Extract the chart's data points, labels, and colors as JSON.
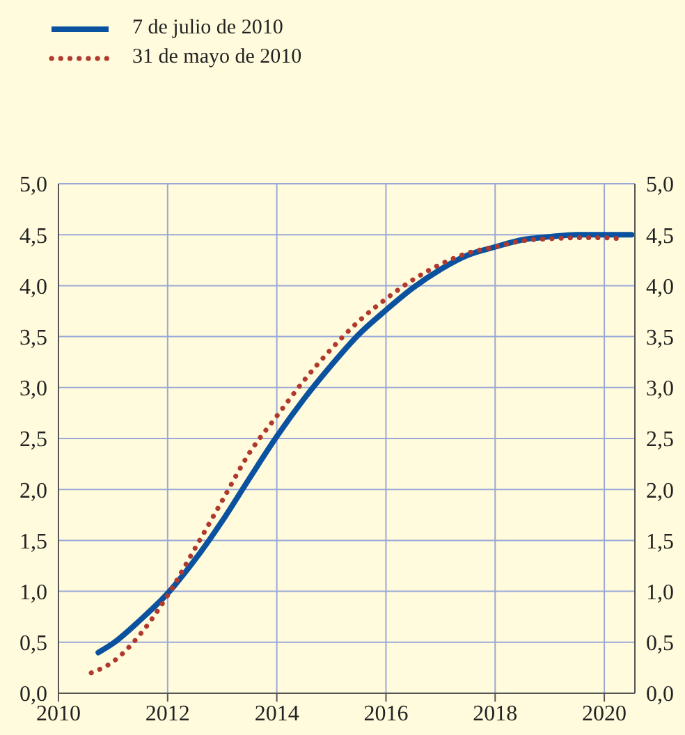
{
  "chart_data": {
    "type": "line",
    "legend": "top left",
    "grid": true,
    "marker": "none",
    "xlim": [
      2010,
      2020.56
    ],
    "xticks": [
      2010,
      2012,
      2014,
      2016,
      2018,
      2020
    ],
    "ylim": [
      0,
      5
    ],
    "yticks": [
      {
        "value": 0,
        "label": "0,0"
      },
      {
        "value": 0.5,
        "label": "0,5"
      },
      {
        "value": 1,
        "label": "1,0"
      },
      {
        "value": 1.5,
        "label": "1,5"
      },
      {
        "value": 2,
        "label": "2,0"
      },
      {
        "value": 2.5,
        "label": "2,5"
      },
      {
        "value": 3,
        "label": "3,0"
      },
      {
        "value": 3.5,
        "label": "3,5"
      },
      {
        "value": 4,
        "label": "4,0"
      },
      {
        "value": 4.5,
        "label": "4,5"
      },
      {
        "value": 5,
        "label": "5,0"
      }
    ],
    "y2lim": [
      0,
      5
    ],
    "y2ticks": [
      {
        "value": 0,
        "label": "0,0"
      },
      {
        "value": 0.5,
        "label": "0,5"
      },
      {
        "value": 1,
        "label": "1,0"
      },
      {
        "value": 1.5,
        "label": "1,5"
      },
      {
        "value": 2,
        "label": "2,0"
      },
      {
        "value": 2.5,
        "label": "2,5"
      },
      {
        "value": 3,
        "label": "3,0"
      },
      {
        "value": 3.5,
        "label": "3,5"
      },
      {
        "value": 4,
        "label": "4,0"
      },
      {
        "value": 4.5,
        "label": "4,5"
      },
      {
        "value": 5,
        "label": "5,0"
      }
    ],
    "series": [
      {
        "name": "7 de julio de 2010",
        "color": "#0a52a0",
        "line_style": "solid",
        "x": [
          2010.73,
          2011,
          2011.5,
          2012,
          2012.5,
          2013,
          2013.5,
          2014,
          2014.5,
          2015,
          2015.5,
          2016,
          2016.5,
          2017,
          2017.5,
          2018,
          2018.5,
          2019,
          2019.5,
          2020,
          2020.5
        ],
        "values": [
          0.4,
          0.49,
          0.72,
          0.98,
          1.31,
          1.69,
          2.11,
          2.52,
          2.89,
          3.22,
          3.52,
          3.76,
          3.98,
          4.16,
          4.3,
          4.38,
          4.45,
          4.48,
          4.5,
          4.5,
          4.5
        ]
      },
      {
        "name": "31 de mayo de 2010",
        "color": "#b0392e",
        "line_style": "dotted",
        "x": [
          2010.6,
          2011,
          2011.5,
          2012,
          2012.5,
          2013,
          2013.5,
          2014,
          2014.5,
          2015,
          2015.5,
          2016,
          2016.5,
          2017,
          2017.5,
          2018,
          2018.5,
          2019,
          2019.5,
          2020,
          2020.3
        ],
        "values": [
          0.2,
          0.31,
          0.58,
          0.96,
          1.42,
          1.89,
          2.36,
          2.72,
          3.07,
          3.38,
          3.65,
          3.87,
          4.06,
          4.21,
          4.32,
          4.38,
          4.44,
          4.46,
          4.47,
          4.47,
          4.46
        ]
      }
    ]
  }
}
